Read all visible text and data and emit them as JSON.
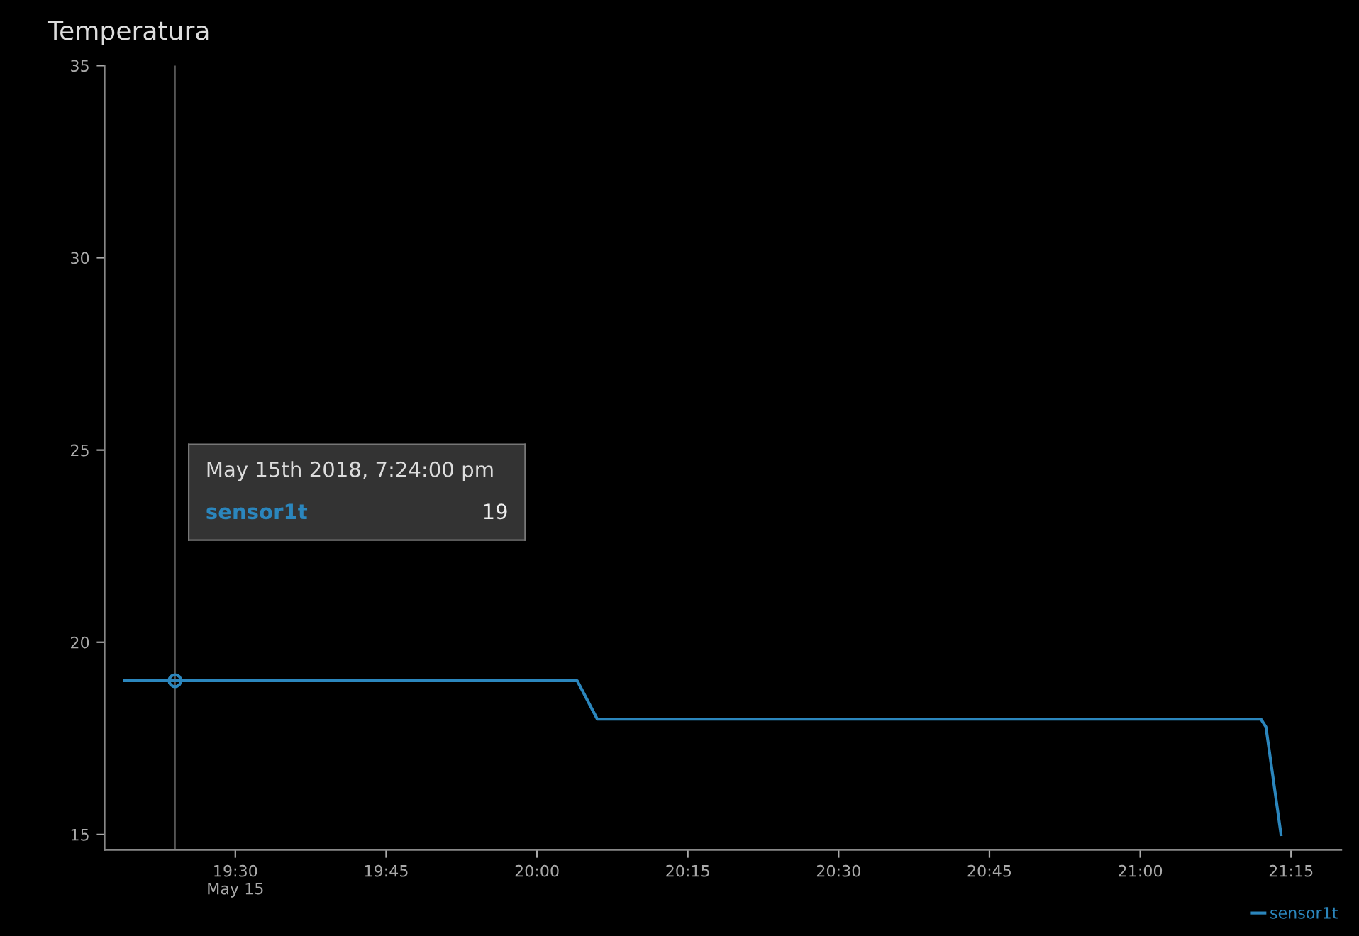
{
  "chart_data": {
    "type": "line",
    "title": "Temperatura",
    "series": [
      {
        "name": "sensor1t",
        "color": "#2b86bd",
        "x": [
          "2018-05-15T19:19",
          "2018-05-15T19:24",
          "2018-05-15T20:04",
          "2018-05-15T20:06",
          "2018-05-15T21:12",
          "2018-05-15T21:12:30",
          "2018-05-15T21:14"
        ],
        "values": [
          19,
          19,
          19,
          18,
          18,
          17.8,
          15
        ]
      }
    ],
    "xlim": [
      "2018-05-15T19:17",
      "2018-05-15T21:20"
    ],
    "xticks": [
      {
        "value": "2018-05-15T19:30",
        "label": "19:30\nMay 15"
      },
      {
        "value": "2018-05-15T19:45",
        "label": "19:45"
      },
      {
        "value": "2018-05-15T20:00",
        "label": "20:00"
      },
      {
        "value": "2018-05-15T20:15",
        "label": "20:15"
      },
      {
        "value": "2018-05-15T20:30",
        "label": "20:30"
      },
      {
        "value": "2018-05-15T20:45",
        "label": "20:45"
      },
      {
        "value": "2018-05-15T21:00",
        "label": "21:00"
      },
      {
        "value": "2018-05-15T21:15",
        "label": "21:15"
      }
    ],
    "ylim": [
      14.6,
      35
    ],
    "yticks": [
      15,
      20,
      25,
      30,
      35
    ],
    "ref_lines": [
      {
        "axis": "x",
        "value": "2018-05-15T19:24",
        "label": null,
        "color": "#555555"
      }
    ],
    "annotations": [
      "May 15th 2018, 7:24:00 pm",
      "sensor1t",
      "19"
    ],
    "grid": false,
    "legend": "bottom right",
    "marker": "none",
    "line_style": "solid"
  }
}
